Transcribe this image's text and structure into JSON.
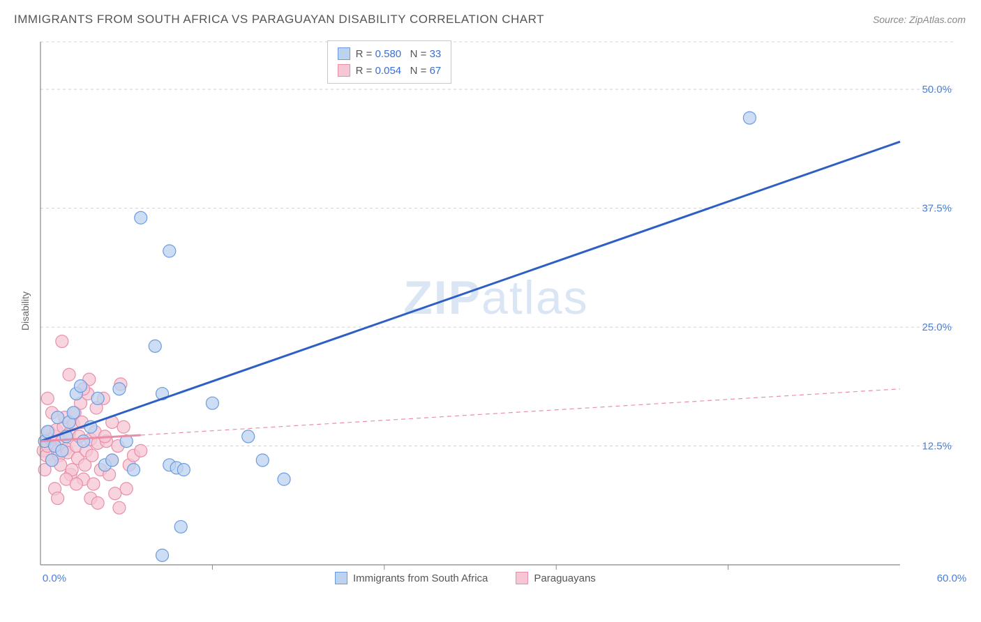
{
  "title": "IMMIGRANTS FROM SOUTH AFRICA VS PARAGUAYAN DISABILITY CORRELATION CHART",
  "source": "Source: ZipAtlas.com",
  "y_axis_label": "Disability",
  "watermark": {
    "bold": "ZIP",
    "light": "atlas"
  },
  "chart": {
    "type": "scatter",
    "xlim": [
      0,
      60
    ],
    "ylim": [
      0,
      55
    ],
    "x_ticks": [
      0,
      60
    ],
    "x_tick_labels": [
      "0.0%",
      "60.0%"
    ],
    "y_ticks": [
      12.5,
      25.0,
      37.5,
      50.0
    ],
    "y_tick_labels": [
      "12.5%",
      "25.0%",
      "37.5%",
      "50.0%"
    ],
    "x_minor_ticks": [
      12,
      24,
      36,
      48
    ],
    "background_color": "#ffffff",
    "grid_color": "#d0d0d0",
    "axis_color": "#888888",
    "series": [
      {
        "name": "Immigrants from South Africa",
        "color_fill": "#bcd3f0",
        "color_stroke": "#6a9be0",
        "marker_radius": 9,
        "marker_opacity": 0.75,
        "regression": {
          "x1": 0,
          "y1": 13.0,
          "x2": 60,
          "y2": 44.5,
          "stroke": "#2d5fc4",
          "width": 3,
          "dash": "none"
        },
        "R": "0.580",
        "N": "33",
        "points": [
          [
            0.3,
            13.0
          ],
          [
            0.5,
            14.0
          ],
          [
            0.8,
            11.0
          ],
          [
            1.0,
            12.5
          ],
          [
            1.2,
            15.5
          ],
          [
            1.5,
            12.0
          ],
          [
            1.8,
            13.5
          ],
          [
            2.0,
            15.0
          ],
          [
            2.3,
            16.0
          ],
          [
            2.5,
            18.0
          ],
          [
            2.8,
            18.8
          ],
          [
            3.0,
            13.0
          ],
          [
            3.5,
            14.5
          ],
          [
            4.0,
            17.5
          ],
          [
            4.5,
            10.5
          ],
          [
            5.0,
            11.0
          ],
          [
            5.5,
            18.5
          ],
          [
            6.0,
            13.0
          ],
          [
            6.5,
            10.0
          ],
          [
            7.0,
            36.5
          ],
          [
            8.0,
            23.0
          ],
          [
            8.5,
            18.0
          ],
          [
            9.0,
            33.0
          ],
          [
            9.0,
            10.5
          ],
          [
            9.5,
            10.2
          ],
          [
            9.8,
            4.0
          ],
          [
            10.0,
            10.0
          ],
          [
            8.5,
            1.0
          ],
          [
            12.0,
            17.0
          ],
          [
            14.5,
            13.5
          ],
          [
            15.5,
            11.0
          ],
          [
            17.0,
            9.0
          ],
          [
            49.5,
            47.0
          ]
        ]
      },
      {
        "name": "Paraguayans",
        "color_fill": "#f6c6d4",
        "color_stroke": "#e88fa8",
        "marker_radius": 9,
        "marker_opacity": 0.75,
        "regression": {
          "x1": 0,
          "y1": 13.0,
          "x2": 60,
          "y2": 18.5,
          "stroke": "#e88fa8",
          "width": 2,
          "dash": "6 5",
          "solid_until_x": 7
        },
        "R": "0.054",
        "N": "67",
        "points": [
          [
            0.2,
            12.0
          ],
          [
            0.3,
            13.0
          ],
          [
            0.4,
            11.5
          ],
          [
            0.5,
            12.5
          ],
          [
            0.6,
            14.0
          ],
          [
            0.7,
            13.2
          ],
          [
            0.8,
            11.0
          ],
          [
            0.9,
            12.8
          ],
          [
            1.0,
            13.5
          ],
          [
            1.1,
            14.2
          ],
          [
            1.2,
            12.0
          ],
          [
            1.3,
            11.5
          ],
          [
            1.4,
            10.5
          ],
          [
            1.5,
            13.0
          ],
          [
            1.6,
            14.5
          ],
          [
            1.7,
            15.5
          ],
          [
            1.8,
            12.2
          ],
          [
            1.9,
            11.8
          ],
          [
            2.0,
            13.8
          ],
          [
            2.1,
            9.5
          ],
          [
            2.2,
            10.0
          ],
          [
            2.3,
            14.8
          ],
          [
            2.4,
            16.0
          ],
          [
            2.5,
            12.5
          ],
          [
            2.6,
            11.2
          ],
          [
            2.7,
            13.5
          ],
          [
            2.8,
            17.0
          ],
          [
            2.9,
            15.0
          ],
          [
            3.0,
            9.0
          ],
          [
            3.1,
            10.5
          ],
          [
            3.2,
            12.0
          ],
          [
            3.3,
            18.0
          ],
          [
            3.4,
            19.5
          ],
          [
            3.5,
            13.2
          ],
          [
            3.6,
            11.5
          ],
          [
            3.7,
            8.5
          ],
          [
            3.8,
            14.0
          ],
          [
            3.9,
            16.5
          ],
          [
            4.0,
            12.8
          ],
          [
            4.2,
            10.0
          ],
          [
            4.4,
            17.5
          ],
          [
            4.6,
            13.0
          ],
          [
            4.8,
            9.5
          ],
          [
            5.0,
            11.0
          ],
          [
            5.2,
            7.5
          ],
          [
            5.4,
            12.5
          ],
          [
            5.6,
            19.0
          ],
          [
            5.8,
            14.5
          ],
          [
            6.0,
            8.0
          ],
          [
            6.2,
            10.5
          ],
          [
            1.5,
            23.5
          ],
          [
            2.0,
            20.0
          ],
          [
            0.5,
            17.5
          ],
          [
            0.8,
            16.0
          ],
          [
            1.0,
            8.0
          ],
          [
            1.2,
            7.0
          ],
          [
            3.0,
            18.5
          ],
          [
            3.5,
            7.0
          ],
          [
            4.0,
            6.5
          ],
          [
            4.5,
            13.5
          ],
          [
            5.0,
            15.0
          ],
          [
            5.5,
            6.0
          ],
          [
            6.5,
            11.5
          ],
          [
            7.0,
            12.0
          ],
          [
            1.8,
            9.0
          ],
          [
            2.5,
            8.5
          ],
          [
            0.3,
            10.0
          ]
        ]
      }
    ]
  },
  "legend_top": {
    "border_color": "#c8c8c8",
    "rows": [
      {
        "swatch_fill": "#bcd3f0",
        "swatch_stroke": "#6a9be0",
        "R_label": "R =",
        "R": "0.580",
        "N_label": "N =",
        "N": "33"
      },
      {
        "swatch_fill": "#f6c6d4",
        "swatch_stroke": "#e88fa8",
        "R_label": "R =",
        "R": "0.054",
        "N_label": "N =",
        "N": "67"
      }
    ]
  },
  "legend_bottom": [
    {
      "swatch_fill": "#bcd3f0",
      "swatch_stroke": "#6a9be0",
      "label": "Immigrants from South Africa"
    },
    {
      "swatch_fill": "#f6c6d4",
      "swatch_stroke": "#e88fa8",
      "label": "Paraguayans"
    }
  ]
}
